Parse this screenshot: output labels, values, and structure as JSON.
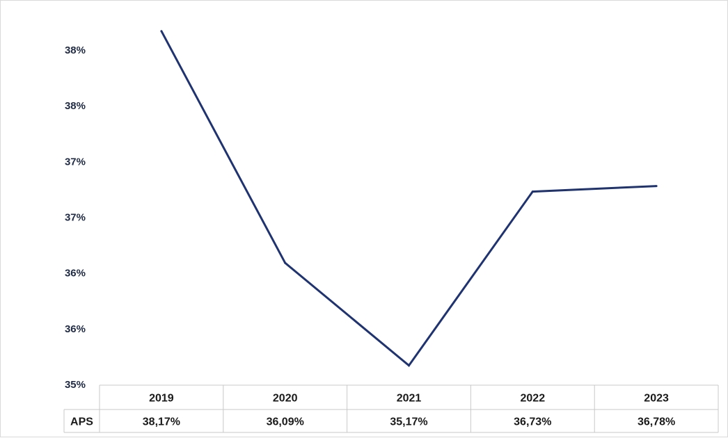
{
  "chart_data": {
    "type": "line",
    "categories": [
      "2019",
      "2020",
      "2021",
      "2022",
      "2023"
    ],
    "series": [
      {
        "name": "APS",
        "values": [
          38.17,
          36.09,
          35.17,
          36.73,
          36.78
        ],
        "color": "#1f3370"
      }
    ],
    "data_labels": [
      "38,17%",
      "36,09%",
      "35,17%",
      "36,73%",
      "36,78%"
    ],
    "y_ticks": [
      {
        "value": 35.0,
        "label": "35%"
      },
      {
        "value": 35.5,
        "label": "36%"
      },
      {
        "value": 36.0,
        "label": "36%"
      },
      {
        "value": 36.5,
        "label": "37%"
      },
      {
        "value": 37.0,
        "label": "37%"
      },
      {
        "value": 37.5,
        "label": "38%"
      },
      {
        "value": 38.0,
        "label": "38%"
      }
    ],
    "ylim": [
      35.0,
      38.0
    ],
    "grid": false,
    "legend": "data-table",
    "title": "",
    "xlabel": "",
    "ylabel": ""
  }
}
